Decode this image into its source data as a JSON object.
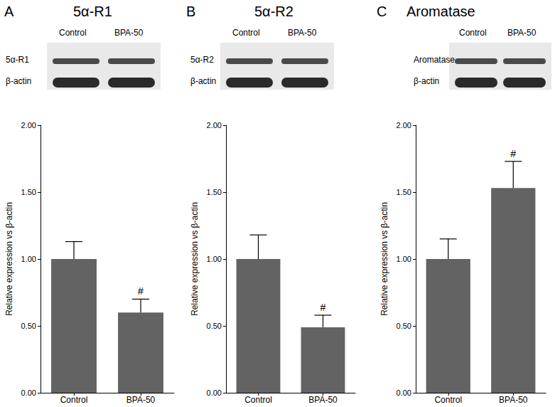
{
  "chart_data": [
    {
      "type": "bar",
      "panel": "A",
      "title": "5α-R1",
      "blot": {
        "lanes": [
          "Control",
          "BPA-50"
        ],
        "rows": [
          "5α-R1",
          "β-actin"
        ]
      },
      "categories": [
        "Control",
        "BPA-50"
      ],
      "values": [
        1.0,
        0.6
      ],
      "errors": [
        0.13,
        0.1
      ],
      "annotations": [
        null,
        "#"
      ],
      "color": "#636363",
      "ylabel": "Relative expression vs β-actin",
      "ylim": [
        0,
        2
      ],
      "yticks": [
        {
          "value": 0,
          "label": "0.00"
        },
        {
          "value": 0.5,
          "label": "0.50"
        },
        {
          "value": 1,
          "label": "1.00"
        },
        {
          "value": 1.5,
          "label": "1.50"
        },
        {
          "value": 2,
          "label": "2.00"
        }
      ],
      "grid": false
    },
    {
      "type": "bar",
      "panel": "B",
      "title": "5α-R2",
      "blot": {
        "lanes": [
          "Control",
          "BPA-50"
        ],
        "rows": [
          "5α-R2",
          "β-actin"
        ]
      },
      "categories": [
        "Control",
        "BPA-50"
      ],
      "values": [
        1.0,
        0.49
      ],
      "errors": [
        0.18,
        0.09
      ],
      "annotations": [
        null,
        "#"
      ],
      "color": "#636363",
      "ylabel": "Relative expression vs β-actin",
      "ylim": [
        0,
        2
      ],
      "yticks": [
        {
          "value": 0,
          "label": "0.00"
        },
        {
          "value": 0.5,
          "label": "0.50"
        },
        {
          "value": 1,
          "label": "1.00"
        },
        {
          "value": 1.5,
          "label": "1.50"
        },
        {
          "value": 2,
          "label": "2.00"
        }
      ],
      "grid": false
    },
    {
      "type": "bar",
      "panel": "C",
      "title": "Aromatase",
      "blot": {
        "lanes": [
          "Control",
          "BPA-50"
        ],
        "rows": [
          "Aromatase",
          "β-actin"
        ]
      },
      "categories": [
        "Control",
        "BPA-50"
      ],
      "values": [
        1.0,
        1.53
      ],
      "errors": [
        0.15,
        0.2
      ],
      "annotations": [
        null,
        "#"
      ],
      "color": "#636363",
      "ylabel": "Relative expression vs β-actin",
      "ylim": [
        0,
        2
      ],
      "yticks": [
        {
          "value": 0,
          "label": "0.00"
        },
        {
          "value": 0.5,
          "label": "0.50"
        },
        {
          "value": 1,
          "label": "1.00"
        },
        {
          "value": 1.5,
          "label": "1.50"
        },
        {
          "value": 2,
          "label": "2.00"
        }
      ],
      "grid": false
    }
  ]
}
